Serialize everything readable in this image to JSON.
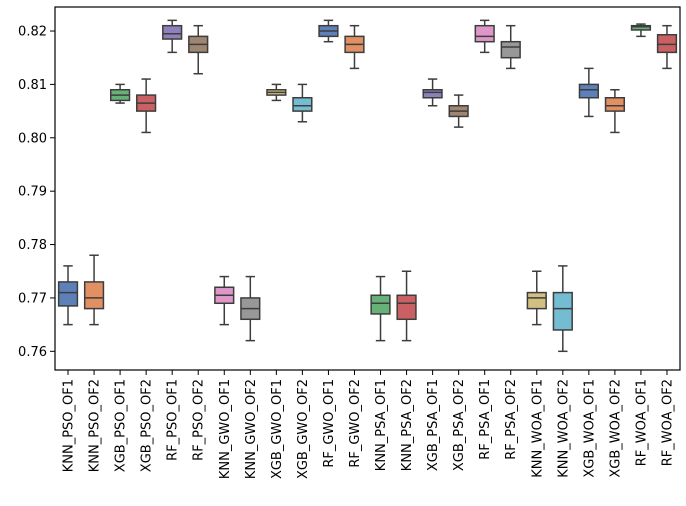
{
  "chart_data": {
    "type": "box",
    "title": "",
    "xlabel": "",
    "ylabel": "",
    "ylim": [
      0.7565,
      0.8245
    ],
    "yticks": [
      "0.76",
      "0.77",
      "0.78",
      "0.79",
      "0.80",
      "0.81",
      "0.82"
    ],
    "ytick_values": [
      0.76,
      0.77,
      0.78,
      0.79,
      0.8,
      0.81,
      0.82
    ],
    "grid": false,
    "boxes": [
      {
        "label": "KNN_PSO_OF1",
        "color": "#4c72b0",
        "whisker_low": 0.765,
        "q1": 0.7685,
        "median": 0.771,
        "q3": 0.773,
        "whisker_high": 0.776
      },
      {
        "label": "KNN_PSO_OF2",
        "color": "#dd8452",
        "whisker_low": 0.765,
        "q1": 0.768,
        "median": 0.77,
        "q3": 0.773,
        "whisker_high": 0.778
      },
      {
        "label": "XGB_PSO_OF1",
        "color": "#55a868",
        "whisker_low": 0.8065,
        "q1": 0.807,
        "median": 0.808,
        "q3": 0.809,
        "whisker_high": 0.81
      },
      {
        "label": "XGB_PSO_OF2",
        "color": "#c44e52",
        "whisker_low": 0.801,
        "q1": 0.805,
        "median": 0.8065,
        "q3": 0.808,
        "whisker_high": 0.811
      },
      {
        "label": "RF_PSO_OF1",
        "color": "#8172b3",
        "whisker_low": 0.816,
        "q1": 0.8185,
        "median": 0.8195,
        "q3": 0.821,
        "whisker_high": 0.822
      },
      {
        "label": "RF_PSO_OF2",
        "color": "#937860",
        "whisker_low": 0.812,
        "q1": 0.816,
        "median": 0.8175,
        "q3": 0.819,
        "whisker_high": 0.821
      },
      {
        "label": "KNN_GWO_OF1",
        "color": "#da8bc3",
        "whisker_low": 0.765,
        "q1": 0.769,
        "median": 0.7705,
        "q3": 0.772,
        "whisker_high": 0.774
      },
      {
        "label": "KNN_GWO_OF2",
        "color": "#8c8c8c",
        "whisker_low": 0.762,
        "q1": 0.766,
        "median": 0.768,
        "q3": 0.77,
        "whisker_high": 0.774
      },
      {
        "label": "XGB_GWO_OF1",
        "color": "#ccb974",
        "whisker_low": 0.807,
        "q1": 0.808,
        "median": 0.8085,
        "q3": 0.809,
        "whisker_high": 0.81
      },
      {
        "label": "XGB_GWO_OF2",
        "color": "#64b5cd",
        "whisker_low": 0.803,
        "q1": 0.805,
        "median": 0.806,
        "q3": 0.8075,
        "whisker_high": 0.81
      },
      {
        "label": "RF_GWO_OF1",
        "color": "#4c72b0",
        "whisker_low": 0.818,
        "q1": 0.819,
        "median": 0.82,
        "q3": 0.821,
        "whisker_high": 0.822
      },
      {
        "label": "RF_GWO_OF2",
        "color": "#dd8452",
        "whisker_low": 0.813,
        "q1": 0.816,
        "median": 0.8175,
        "q3": 0.819,
        "whisker_high": 0.821
      },
      {
        "label": "KNN_PSA_OF1",
        "color": "#55a868",
        "whisker_low": 0.762,
        "q1": 0.767,
        "median": 0.769,
        "q3": 0.7705,
        "whisker_high": 0.774
      },
      {
        "label": "KNN_PSA_OF2",
        "color": "#c44e52",
        "whisker_low": 0.762,
        "q1": 0.766,
        "median": 0.769,
        "q3": 0.7705,
        "whisker_high": 0.775
      },
      {
        "label": "XGB_PSA_OF1",
        "color": "#8172b3",
        "whisker_low": 0.806,
        "q1": 0.8075,
        "median": 0.8085,
        "q3": 0.809,
        "whisker_high": 0.811
      },
      {
        "label": "XGB_PSA_OF2",
        "color": "#937860",
        "whisker_low": 0.802,
        "q1": 0.804,
        "median": 0.805,
        "q3": 0.806,
        "whisker_high": 0.808
      },
      {
        "label": "RF_PSA_OF1",
        "color": "#da8bc3",
        "whisker_low": 0.816,
        "q1": 0.818,
        "median": 0.819,
        "q3": 0.821,
        "whisker_high": 0.822
      },
      {
        "label": "RF_PSA_OF2",
        "color": "#8c8c8c",
        "whisker_low": 0.813,
        "q1": 0.815,
        "median": 0.817,
        "q3": 0.818,
        "whisker_high": 0.821
      },
      {
        "label": "KNN_WOA_OF1",
        "color": "#ccb974",
        "whisker_low": 0.765,
        "q1": 0.768,
        "median": 0.77,
        "q3": 0.771,
        "whisker_high": 0.775
      },
      {
        "label": "KNN_WOA_OF2",
        "color": "#64b5cd",
        "whisker_low": 0.76,
        "q1": 0.764,
        "median": 0.768,
        "q3": 0.771,
        "whisker_high": 0.776
      },
      {
        "label": "XGB_WOA_OF1",
        "color": "#4c72b0",
        "whisker_low": 0.804,
        "q1": 0.8075,
        "median": 0.809,
        "q3": 0.81,
        "whisker_high": 0.813
      },
      {
        "label": "XGB_WOA_OF2",
        "color": "#dd8452",
        "whisker_low": 0.801,
        "q1": 0.805,
        "median": 0.806,
        "q3": 0.8075,
        "whisker_high": 0.809
      },
      {
        "label": "RF_WOA_OF1",
        "color": "#55a868",
        "whisker_low": 0.819,
        "q1": 0.8202,
        "median": 0.8208,
        "q3": 0.821,
        "whisker_high": 0.8213
      },
      {
        "label": "RF_WOA_OF2",
        "color": "#c44e52",
        "whisker_low": 0.813,
        "q1": 0.816,
        "median": 0.8175,
        "q3": 0.8193,
        "whisker_high": 0.821
      }
    ]
  }
}
